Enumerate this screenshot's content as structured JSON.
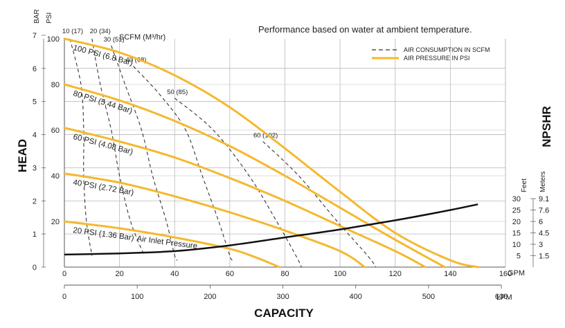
{
  "chart_data": {
    "type": "line",
    "title": "Performance based on water at ambient temperature.",
    "xlabel": "CAPACITY",
    "ylabel": "HEAD",
    "right_label": "NPSHR",
    "x_unit_gpm": "GPM",
    "x_unit_lpm": "LPM",
    "xlim_gpm": [
      0,
      160
    ],
    "x_ticks_gpm": [
      0,
      20,
      40,
      60,
      80,
      100,
      120,
      140,
      160
    ],
    "x_ticks_lpm": [
      0,
      100,
      200,
      300,
      400,
      500,
      600
    ],
    "head_units": [
      "BAR",
      "PSI"
    ],
    "ylim_psi": [
      0,
      100
    ],
    "y_ticks_psi": [
      20,
      40,
      60,
      80,
      100
    ],
    "y_ticks_bar": [
      0,
      1,
      2,
      3,
      4,
      5,
      6,
      7
    ],
    "npshr_units": [
      "Feet",
      "Meters"
    ],
    "npshr_feet": [
      "30",
      "25",
      "20",
      "15",
      "10",
      "5"
    ],
    "npshr_meters": [
      "9.1",
      "7.6",
      "6",
      "4.5",
      "3",
      "1.5"
    ],
    "scfm_header": "SCFM (M³/hr)",
    "grid": true,
    "legend_position": "top-right",
    "legend": [
      {
        "label": "AIR CONSUMPTION IN SCFM",
        "style": "dashed",
        "color": "#333333"
      },
      {
        "label": "AIR PRESSURE IN PSI",
        "style": "solid",
        "color": "#f5b82e"
      }
    ],
    "annotation": "Air Inlet Pressure",
    "pressure_series": [
      {
        "name": "100 PSI (6.8 Bar)",
        "points": [
          [
            0,
            100
          ],
          [
            20,
            94
          ],
          [
            40,
            84
          ],
          [
            60,
            70
          ],
          [
            80,
            52
          ],
          [
            100,
            33
          ],
          [
            120,
            15
          ],
          [
            140,
            3
          ],
          [
            150,
            0
          ]
        ]
      },
      {
        "name": "80 PSI (5.44 Bar)",
        "points": [
          [
            0,
            80
          ],
          [
            20,
            73
          ],
          [
            40,
            64
          ],
          [
            60,
            53
          ],
          [
            80,
            40
          ],
          [
            100,
            26
          ],
          [
            120,
            12
          ],
          [
            138,
            0
          ]
        ]
      },
      {
        "name": "60 PSI (4.08 Bar)",
        "points": [
          [
            0,
            61
          ],
          [
            20,
            55
          ],
          [
            40,
            48
          ],
          [
            60,
            39
          ],
          [
            80,
            29
          ],
          [
            100,
            18
          ],
          [
            120,
            7
          ],
          [
            131,
            0
          ]
        ]
      },
      {
        "name": "40 PSI (2.72 Bar)",
        "points": [
          [
            0,
            41
          ],
          [
            20,
            37
          ],
          [
            40,
            31
          ],
          [
            60,
            24
          ],
          [
            80,
            16
          ],
          [
            100,
            7
          ],
          [
            109,
            0
          ]
        ]
      },
      {
        "name": "20 PSI (1.36 Bar)",
        "points": [
          [
            0,
            20
          ],
          [
            20,
            17
          ],
          [
            40,
            13
          ],
          [
            60,
            8
          ],
          [
            70,
            4
          ],
          [
            78,
            0
          ]
        ]
      }
    ],
    "scfm_series": [
      {
        "name": "10 (17)",
        "points": [
          [
            2,
            100
          ],
          [
            6,
            80
          ],
          [
            7,
            60
          ],
          [
            7,
            40
          ],
          [
            8,
            20
          ],
          [
            10,
            5
          ]
        ]
      },
      {
        "name": "20 (34)",
        "points": [
          [
            10,
            100
          ],
          [
            13,
            80
          ],
          [
            17,
            60
          ],
          [
            20,
            40
          ],
          [
            24,
            20
          ],
          [
            29,
            5
          ]
        ]
      },
      {
        "name": "30 (51)",
        "points": [
          [
            17,
            97
          ],
          [
            22,
            80
          ],
          [
            28,
            60
          ],
          [
            32,
            40
          ],
          [
            37,
            20
          ],
          [
            40,
            5
          ],
          [
            41,
            3
          ]
        ]
      },
      {
        "name": "40 (68)",
        "points": [
          [
            25,
            88
          ],
          [
            35,
            75
          ],
          [
            44,
            60
          ],
          [
            50,
            40
          ],
          [
            56,
            20
          ],
          [
            60,
            5
          ],
          [
            61,
            3
          ]
        ]
      },
      {
        "name": "50 (85)",
        "points": [
          [
            40,
            74
          ],
          [
            54,
            60
          ],
          [
            67,
            40
          ],
          [
            77,
            20
          ],
          [
            84,
            5
          ],
          [
            86,
            0
          ]
        ]
      },
      {
        "name": "60 (102)",
        "points": [
          [
            72,
            55
          ],
          [
            85,
            40
          ],
          [
            99,
            20
          ],
          [
            110,
            5
          ],
          [
            113,
            0
          ]
        ]
      }
    ],
    "npshr_curve": {
      "name": "NPSHR",
      "points": [
        [
          0,
          5.5
        ],
        [
          20,
          6
        ],
        [
          40,
          7
        ],
        [
          60,
          9.5
        ],
        [
          80,
          13
        ],
        [
          100,
          16.5
        ],
        [
          120,
          20.5
        ],
        [
          140,
          25
        ],
        [
          150,
          27.5
        ]
      ]
    }
  }
}
